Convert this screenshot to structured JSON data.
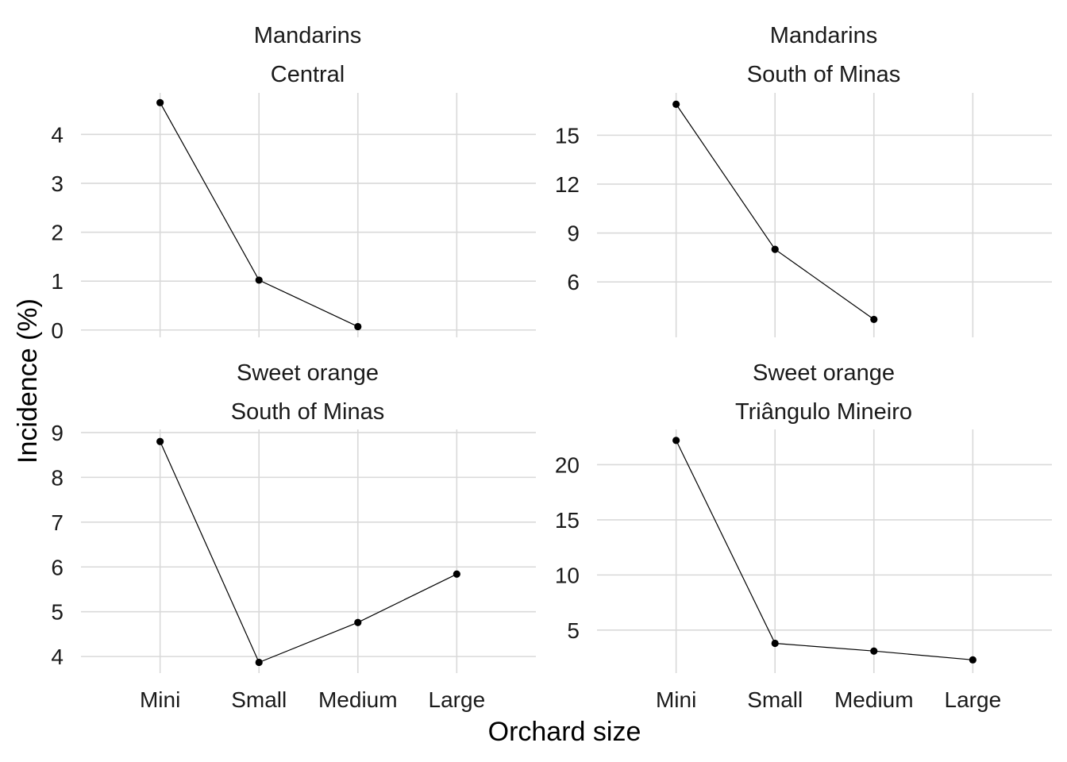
{
  "chart_data": {
    "type": "line",
    "xlabel": "Orchard size",
    "ylabel": "Incidence (%)",
    "categories": [
      "Mini",
      "Small",
      "Medium",
      "Large"
    ],
    "grid": true,
    "panels": [
      {
        "strip": [
          "Mandarins",
          "Central"
        ],
        "ylim": [
          -0.15,
          4.85
        ],
        "yticks": [
          0,
          1,
          2,
          3,
          4
        ],
        "x": [
          "Mini",
          "Small",
          "Medium"
        ],
        "values": [
          4.65,
          1.02,
          0.07
        ]
      },
      {
        "strip": [
          "Mandarins",
          "South of Minas"
        ],
        "ylim": [
          2.6,
          17.6
        ],
        "yticks": [
          6,
          9,
          12,
          15
        ],
        "x": [
          "Mini",
          "Small",
          "Medium"
        ],
        "values": [
          16.9,
          8.0,
          3.7
        ]
      },
      {
        "strip": [
          "Sweet orange",
          "South of Minas"
        ],
        "ylim": [
          3.63,
          9.07
        ],
        "yticks": [
          4,
          5,
          6,
          7,
          8,
          9
        ],
        "x": [
          "Mini",
          "Small",
          "Medium",
          "Large"
        ],
        "values": [
          8.8,
          3.87,
          4.76,
          5.84
        ]
      },
      {
        "strip": [
          "Sweet orange",
          "Triângulo Mineiro"
        ],
        "ylim": [
          1.1,
          23.2
        ],
        "yticks": [
          5,
          10,
          15,
          20
        ],
        "x": [
          "Mini",
          "Small",
          "Medium",
          "Large"
        ],
        "values": [
          22.2,
          3.8,
          3.1,
          2.3
        ]
      }
    ]
  }
}
